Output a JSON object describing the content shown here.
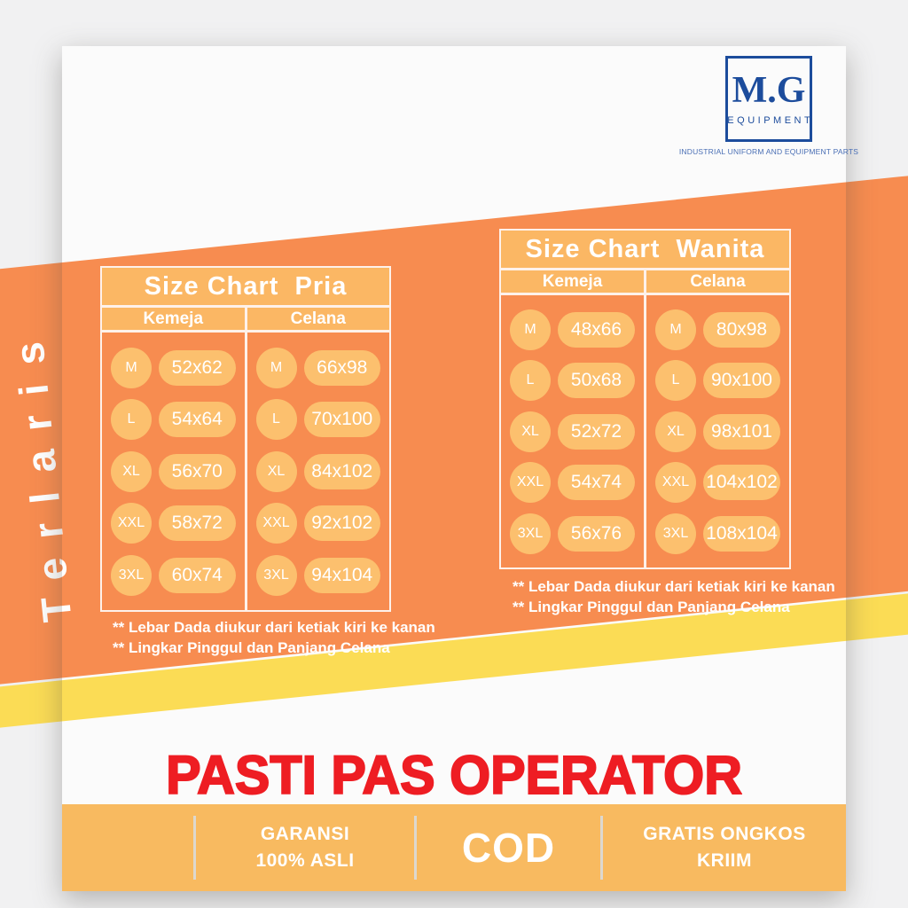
{
  "colors": {
    "band_orange": "#F78C50",
    "panel_light_orange": "#FBB764",
    "pill_orange": "#FCC06E",
    "band_yellow": "#FBDC55",
    "headline_red": "#EE1D23",
    "brand_blue": "#1C4C9C",
    "footer_bar": "#F8BA60"
  },
  "brand": {
    "name": "M.G",
    "department": "EQUIPMENT",
    "tagline": "INDUSTRIAL UNIFORM AND EQUIPMENT PARTS"
  },
  "ribbon": {
    "label": "Terlaris"
  },
  "headline": "PASTI PAS OPERATOR",
  "tables": [
    {
      "title": "Size Chart  Pria",
      "columns": [
        "Kemeja",
        "Celana"
      ],
      "sizes": [
        "M",
        "L",
        "XL",
        "XXL",
        "3XL"
      ],
      "values": {
        "Kemeja": [
          "52x62",
          "54x64",
          "56x70",
          "58x72",
          "60x74"
        ],
        "Celana": [
          "66x98",
          "70x100",
          "84x102",
          "92x102",
          "94x104"
        ]
      },
      "notes": [
        "** Lebar Dada diukur dari ketiak kiri ke kanan",
        "** Lingkar Pinggul dan Panjang Celana"
      ]
    },
    {
      "title": "Size Chart  Wanita",
      "columns": [
        "Kemeja",
        "Celana"
      ],
      "sizes": [
        "M",
        "L",
        "XL",
        "XXL",
        "3XL"
      ],
      "values": {
        "Kemeja": [
          "48x66",
          "50x68",
          "52x72",
          "54x74",
          "56x76"
        ],
        "Celana": [
          "80x98",
          "90x100",
          "98x101",
          "104x102",
          "108x104"
        ]
      },
      "notes": [
        "** Lebar Dada diukur dari ketiak kiri ke kanan",
        "** Lingkar Pinggul dan Panjang Celana"
      ]
    }
  ],
  "footer": {
    "cells": [
      {
        "lines": []
      },
      {
        "lines": [
          "GARANSI",
          "100% ASLI"
        ]
      },
      {
        "lines": [
          "COD"
        ],
        "emphasis": true
      },
      {
        "lines": [
          "GRATIS ONGKOS",
          "KRIIM"
        ]
      }
    ]
  }
}
